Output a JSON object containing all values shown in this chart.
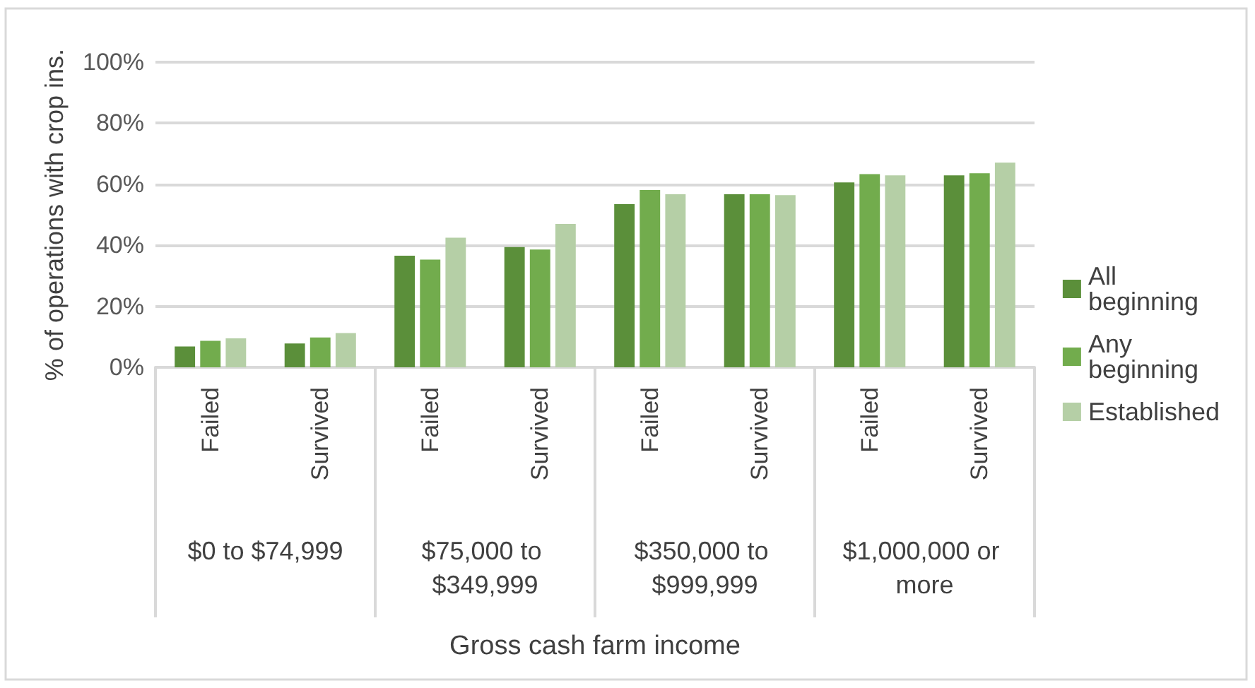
{
  "chart_data": {
    "type": "bar",
    "ylabel": "% of operations with crop ins.",
    "categories": [
      "Failed",
      "Survived",
      "Failed",
      "Survived",
      "Failed",
      "Survived",
      "Failed",
      "Survived"
    ],
    "annotations": [
      "$0 to $74,999",
      "$75,000 to $349,999",
      "$350,000 to $999,999",
      "$1,000,000 or more",
      "Gross cash farm income"
    ],
    "series": [
      {
        "name": "All beginning",
        "color": "#5b8f3a",
        "values": [
          6.8,
          7.8,
          36.6,
          39.4,
          53.5,
          56.7,
          60.6,
          62.9
        ]
      },
      {
        "name": "Any beginning",
        "color": "#72ac4d",
        "values": [
          8.7,
          9.8,
          35.3,
          38.6,
          58.1,
          56.7,
          63.3,
          63.6
        ]
      },
      {
        "name": "Established",
        "color": "#b5cfa6",
        "values": [
          9.5,
          11.2,
          42.5,
          47.0,
          56.7,
          56.4,
          62.9,
          67.1
        ]
      }
    ],
    "ylim": [
      0,
      100
    ],
    "yticks": [
      {
        "value": 0,
        "label": "0%"
      },
      {
        "value": 20,
        "label": "20%"
      },
      {
        "value": 40,
        "label": "40%"
      },
      {
        "value": 60,
        "label": "60%"
      },
      {
        "value": 80,
        "label": "80%"
      },
      {
        "value": 100,
        "label": "100%"
      }
    ],
    "grid": "y",
    "legend": "right"
  }
}
